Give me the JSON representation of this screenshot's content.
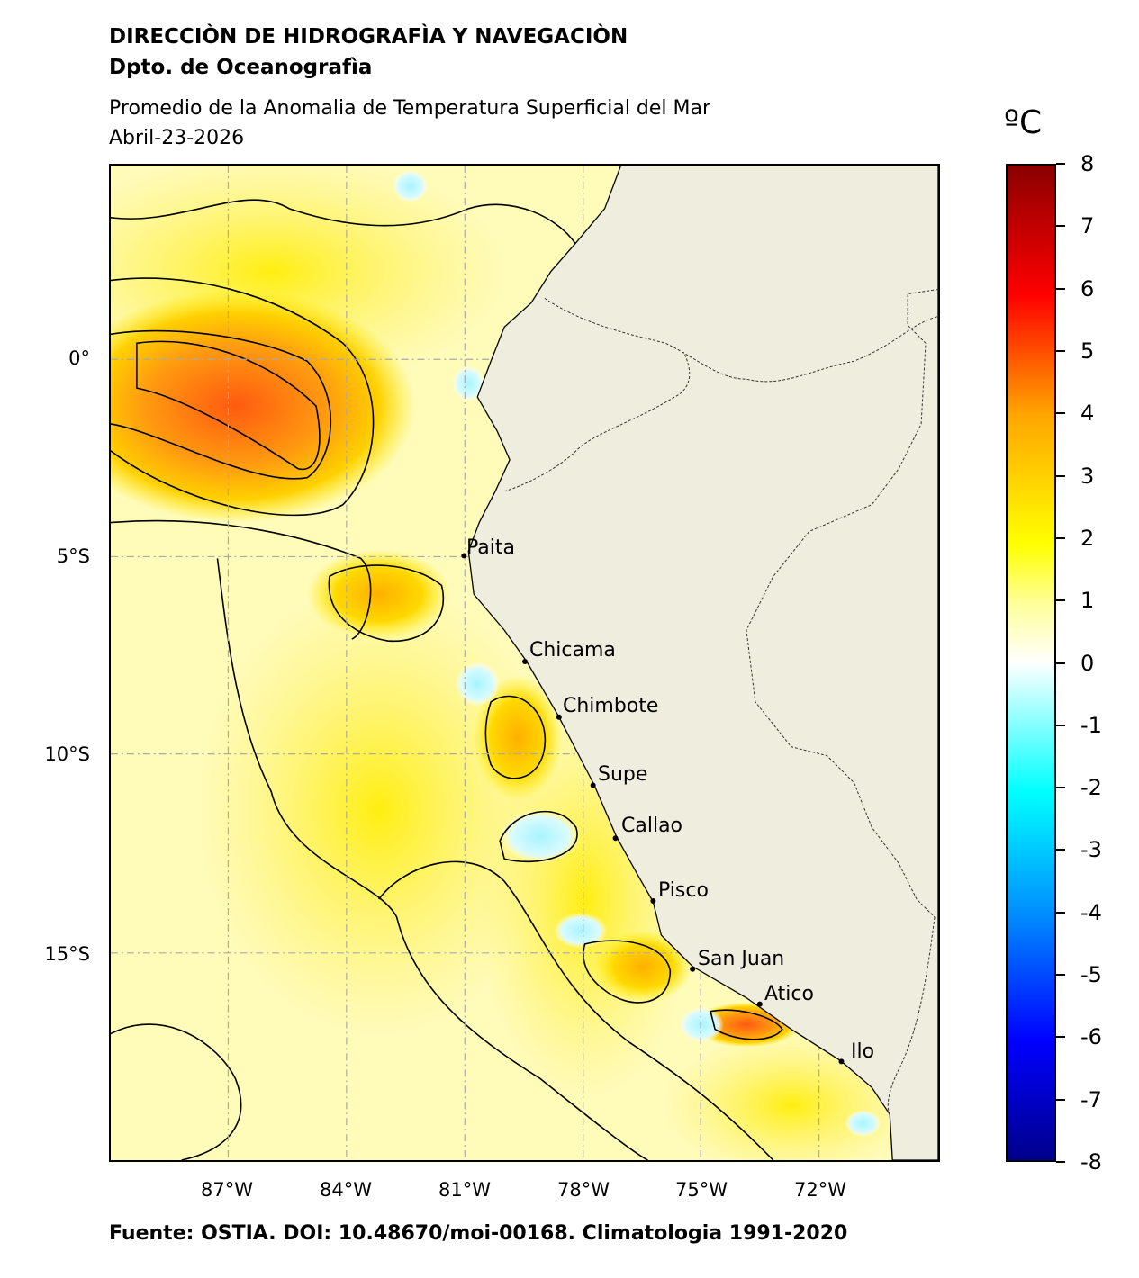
{
  "header": {
    "org": "DIRECCIÒN DE HIDROGRAFÌA Y NAVEGACIÒN",
    "dept": "Dpto. de Oceanografìa",
    "title": "Promedio de la Anomalia de Temperatura Superficial del Mar",
    "date": "Abril-23-2026"
  },
  "map": {
    "x_ticks": [
      "87°W",
      "84°W",
      "81°W",
      "78°W",
      "75°W",
      "72°W"
    ],
    "y_ticks": [
      "0°",
      "5°S",
      "10°S",
      "15°S"
    ],
    "cities": [
      "Paita",
      "Chicama",
      "Chimbote",
      "Supe",
      "Callao",
      "Pisco",
      "San Juan",
      "Atico",
      "Ilo"
    ],
    "colors": {
      "land": "#efedde",
      "sea_base": "#fffbb0"
    }
  },
  "colorbar": {
    "unit": "ºC",
    "ticks": [
      "8",
      "7",
      "6",
      "5",
      "4",
      "3",
      "2",
      "1",
      "0",
      "-1",
      "-2",
      "-3",
      "-4",
      "-5",
      "-6",
      "-7",
      "-8"
    ],
    "range": [
      -8,
      8
    ]
  },
  "footer": "Fuente: OSTIA. DOI: 10.48670/moi-00168. Climatologia 1991-2020"
}
